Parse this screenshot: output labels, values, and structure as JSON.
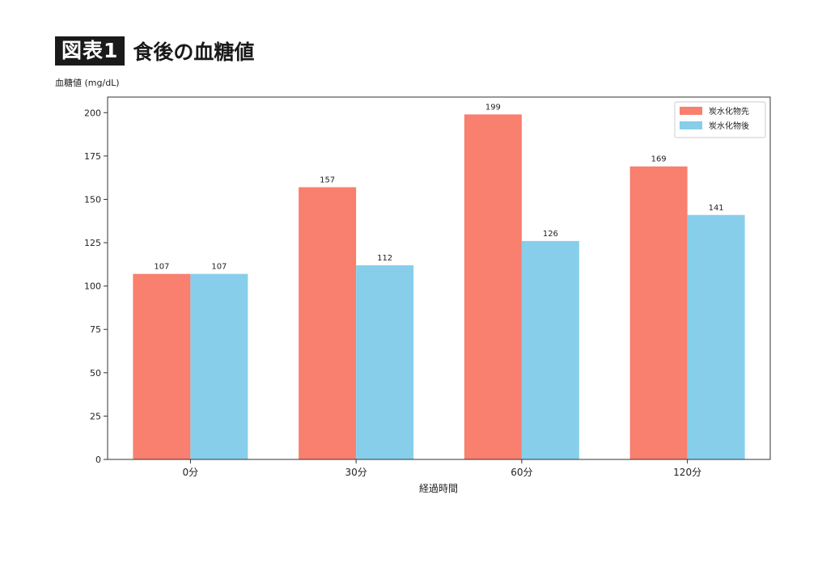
{
  "figure": {
    "badge": "図表1",
    "title": "食後の血糖値"
  },
  "chart_data": {
    "type": "bar",
    "title": "食後の血糖値",
    "xlabel": "経過時間",
    "ylabel": "血糖値 (mg/dL)",
    "categories": [
      "0分",
      "30分",
      "60分",
      "120分"
    ],
    "series": [
      {
        "name": "炭水化物先",
        "values": [
          107,
          157,
          199,
          169
        ],
        "color": "#f97f6e"
      },
      {
        "name": "炭水化物後",
        "values": [
          107,
          112,
          126,
          141
        ],
        "color": "#87ceeb"
      }
    ],
    "ylim": [
      0,
      209
    ],
    "yticks": [
      0,
      25,
      50,
      75,
      100,
      125,
      150,
      175,
      200
    ],
    "legend": "top-right",
    "grid": false
  }
}
